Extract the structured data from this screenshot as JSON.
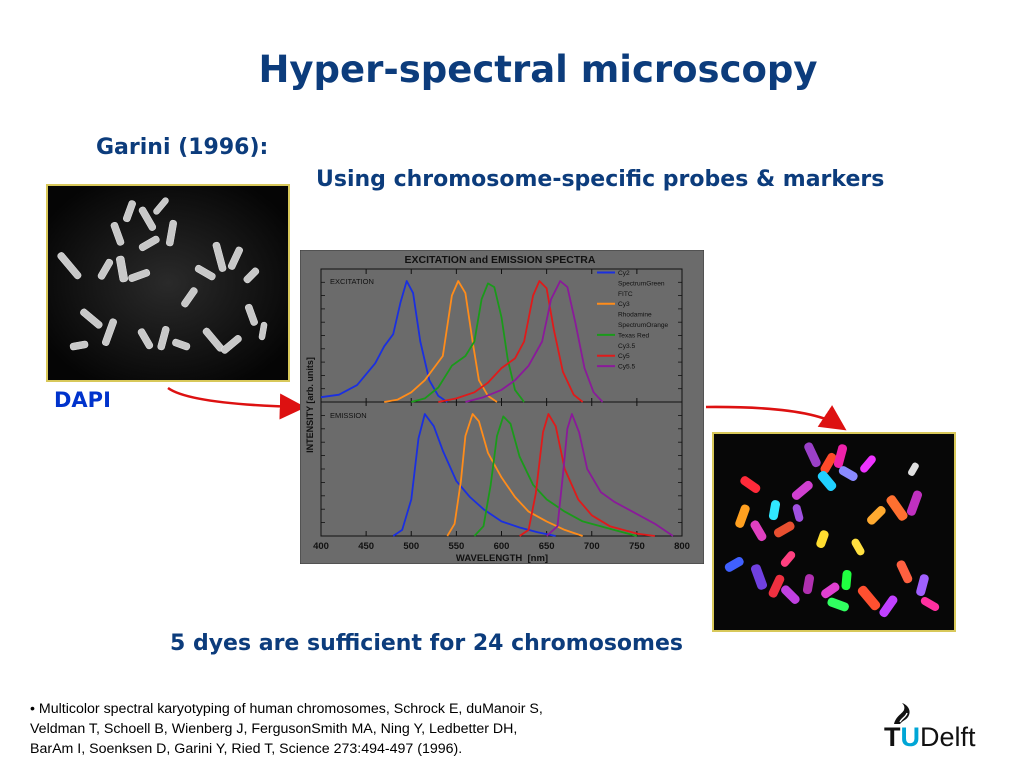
{
  "slide": {
    "title": "Hyper-spectral microscopy",
    "subtitle": "Garini (1996):",
    "subheading": "Using chromosome-specific probes & markers",
    "dapi_label": "DAPI",
    "caption": "5 dyes are sufficient for 24 chromosomes",
    "reference_bullet": "•",
    "reference_lines": [
      "Multicolor spectral karyotyping of human chromosomes, Schrock E, duManoir S,",
      "Veldman T, Schoell B, Wienberg J, FergusonSmith MA, Ning Y, Ledbetter DH,",
      "BarAm I, Soenksen D, Garini Y, Ried T, Science 273:494-497 (1996)."
    ]
  },
  "logo": {
    "t": "T",
    "u": "U",
    "rest": "Delft"
  },
  "colors": {
    "title": "#0c3c7c",
    "dapi": "#0033cc",
    "arrow": "#dd1111",
    "photo_border": "#d8c85a",
    "chart_bg": "#6b6b6b",
    "logo_accent": "#00a6d6"
  },
  "chart_data": {
    "type": "line",
    "title": "EXCITATION and EMISSION SPECTRA",
    "xlabel": "WAVELENGTH  [nm]",
    "ylabel": "INTENSITY [arb. units]",
    "xlim": [
      400,
      800
    ],
    "xticks": [
      400,
      450,
      500,
      550,
      600,
      650,
      700,
      750,
      800
    ],
    "panel_labels": [
      "EXCITATION",
      "EMISSION"
    ],
    "legend_position": "top-right",
    "legend": [
      {
        "label": "Cy2",
        "color": "#1a2fe0"
      },
      {
        "label": "SpectrumGreen",
        "color": null
      },
      {
        "label": "FITC",
        "color": null
      },
      {
        "label": "Cy3",
        "color": "#ff8c1a"
      },
      {
        "label": "Rhodamine",
        "color": null
      },
      {
        "label": "SpectrumOrange",
        "color": null
      },
      {
        "label": "Texas Red",
        "color": "#1a9a1a"
      },
      {
        "label": "Cy3.5",
        "color": null
      },
      {
        "label": "Cy5",
        "color": "#e01a1a"
      },
      {
        "label": "Cy5.5",
        "color": "#8a1a9a"
      }
    ],
    "excitation": [
      {
        "color": "#1a2fe0",
        "points": [
          [
            400,
            0.04
          ],
          [
            420,
            0.06
          ],
          [
            440,
            0.14
          ],
          [
            460,
            0.32
          ],
          [
            470,
            0.46
          ],
          [
            480,
            0.56
          ],
          [
            488,
            0.82
          ],
          [
            495,
            1.0
          ],
          [
            502,
            0.9
          ],
          [
            510,
            0.5
          ],
          [
            520,
            0.18
          ],
          [
            530,
            0.05
          ],
          [
            540,
            0.0
          ]
        ]
      },
      {
        "color": "#ff8c1a",
        "points": [
          [
            470,
            0.0
          ],
          [
            485,
            0.02
          ],
          [
            500,
            0.08
          ],
          [
            515,
            0.18
          ],
          [
            525,
            0.28
          ],
          [
            535,
            0.38
          ],
          [
            545,
            0.88
          ],
          [
            552,
            1.0
          ],
          [
            560,
            0.9
          ],
          [
            568,
            0.5
          ],
          [
            575,
            0.18
          ],
          [
            585,
            0.05
          ],
          [
            595,
            0.0
          ]
        ]
      },
      {
        "color": "#1a9a1a",
        "points": [
          [
            500,
            0.0
          ],
          [
            515,
            0.03
          ],
          [
            530,
            0.12
          ],
          [
            545,
            0.3
          ],
          [
            560,
            0.38
          ],
          [
            570,
            0.5
          ],
          [
            578,
            0.85
          ],
          [
            585,
            0.98
          ],
          [
            592,
            0.95
          ],
          [
            600,
            0.7
          ],
          [
            607,
            0.35
          ],
          [
            615,
            0.1
          ],
          [
            625,
            0.0
          ]
        ]
      },
      {
        "color": "#e01a1a",
        "points": [
          [
            530,
            0.0
          ],
          [
            550,
            0.03
          ],
          [
            570,
            0.08
          ],
          [
            585,
            0.16
          ],
          [
            600,
            0.28
          ],
          [
            615,
            0.36
          ],
          [
            625,
            0.5
          ],
          [
            635,
            0.88
          ],
          [
            642,
            1.0
          ],
          [
            650,
            0.94
          ],
          [
            658,
            0.6
          ],
          [
            668,
            0.25
          ],
          [
            680,
            0.06
          ],
          [
            690,
            0.0
          ]
        ]
      },
      {
        "color": "#8a1a9a",
        "points": [
          [
            560,
            0.0
          ],
          [
            580,
            0.04
          ],
          [
            600,
            0.1
          ],
          [
            615,
            0.18
          ],
          [
            630,
            0.3
          ],
          [
            645,
            0.5
          ],
          [
            655,
            0.85
          ],
          [
            665,
            1.0
          ],
          [
            673,
            0.95
          ],
          [
            682,
            0.65
          ],
          [
            692,
            0.28
          ],
          [
            702,
            0.08
          ],
          [
            712,
            0.0
          ]
        ]
      }
    ],
    "emission": [
      {
        "color": "#1a2fe0",
        "points": [
          [
            480,
            0.0
          ],
          [
            490,
            0.05
          ],
          [
            500,
            0.3
          ],
          [
            508,
            0.8
          ],
          [
            515,
            1.0
          ],
          [
            525,
            0.9
          ],
          [
            535,
            0.7
          ],
          [
            550,
            0.45
          ],
          [
            565,
            0.32
          ],
          [
            580,
            0.22
          ],
          [
            600,
            0.12
          ],
          [
            620,
            0.07
          ],
          [
            640,
            0.03
          ],
          [
            660,
            0.0
          ]
        ]
      },
      {
        "color": "#ff8c1a",
        "points": [
          [
            540,
            0.0
          ],
          [
            548,
            0.1
          ],
          [
            555,
            0.45
          ],
          [
            560,
            0.82
          ],
          [
            568,
            1.0
          ],
          [
            575,
            0.94
          ],
          [
            585,
            0.68
          ],
          [
            600,
            0.48
          ],
          [
            615,
            0.32
          ],
          [
            630,
            0.2
          ],
          [
            650,
            0.12
          ],
          [
            670,
            0.05
          ],
          [
            690,
            0.0
          ]
        ]
      },
      {
        "color": "#1a9a1a",
        "points": [
          [
            570,
            0.0
          ],
          [
            580,
            0.08
          ],
          [
            588,
            0.42
          ],
          [
            595,
            0.82
          ],
          [
            602,
            0.98
          ],
          [
            610,
            0.92
          ],
          [
            620,
            0.65
          ],
          [
            635,
            0.42
          ],
          [
            650,
            0.3
          ],
          [
            670,
            0.2
          ],
          [
            690,
            0.12
          ],
          [
            720,
            0.06
          ],
          [
            750,
            0.0
          ]
        ]
      },
      {
        "color": "#e01a1a",
        "points": [
          [
            620,
            0.0
          ],
          [
            630,
            0.05
          ],
          [
            638,
            0.35
          ],
          [
            646,
            0.85
          ],
          [
            652,
            1.0
          ],
          [
            660,
            0.9
          ],
          [
            670,
            0.55
          ],
          [
            685,
            0.3
          ],
          [
            700,
            0.17
          ],
          [
            720,
            0.08
          ],
          [
            750,
            0.02
          ],
          [
            770,
            0.0
          ]
        ]
      },
      {
        "color": "#8a1a9a",
        "points": [
          [
            650,
            0.0
          ],
          [
            662,
            0.08
          ],
          [
            668,
            0.5
          ],
          [
            673,
            0.88
          ],
          [
            678,
            1.0
          ],
          [
            686,
            0.85
          ],
          [
            695,
            0.55
          ],
          [
            710,
            0.36
          ],
          [
            725,
            0.28
          ],
          [
            745,
            0.2
          ],
          [
            770,
            0.1
          ],
          [
            790,
            0.0
          ]
        ]
      }
    ]
  }
}
